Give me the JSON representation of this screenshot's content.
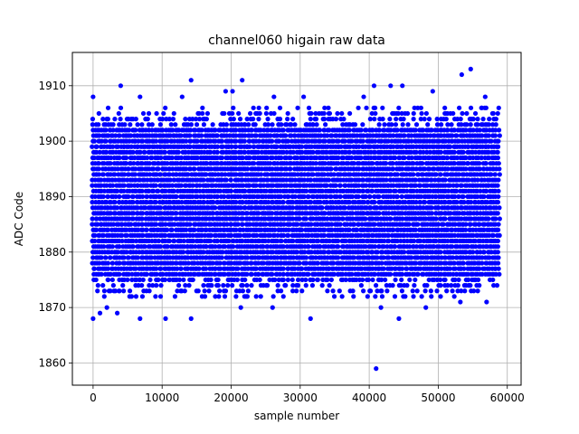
{
  "chart_data": {
    "type": "scatter",
    "title": "channel060 higain raw data",
    "xlabel": "sample number",
    "ylabel": "ADC Code",
    "xlim": [
      -3000,
      62000
    ],
    "ylim": [
      1856,
      1916
    ],
    "x_ticks": [
      0,
      10000,
      20000,
      30000,
      40000,
      50000,
      60000
    ],
    "x_tick_labels": [
      "0",
      "10000",
      "20000",
      "30000",
      "40000",
      "50000",
      "60000"
    ],
    "y_ticks": [
      1860,
      1870,
      1880,
      1890,
      1900,
      1910
    ],
    "y_tick_labels": [
      "1860",
      "1870",
      "1880",
      "1890",
      "1900",
      "1910"
    ],
    "grid": true,
    "series": [
      {
        "color": "#0000ff",
        "sample_range": [
          0,
          59000
        ],
        "dense_band": [
          1876,
          1902
        ],
        "outliers": [
          {
            "x": 41000,
            "y": 1859
          },
          {
            "x": 0,
            "y": 1868
          },
          {
            "x": 1000,
            "y": 1869
          },
          {
            "x": 2000,
            "y": 1870
          },
          {
            "x": 3500,
            "y": 1869
          },
          {
            "x": 6800,
            "y": 1868
          },
          {
            "x": 10500,
            "y": 1868
          },
          {
            "x": 14200,
            "y": 1868
          },
          {
            "x": 31500,
            "y": 1868
          },
          {
            "x": 44300,
            "y": 1868
          },
          {
            "x": 41700,
            "y": 1870
          },
          {
            "x": 21400,
            "y": 1870
          },
          {
            "x": 26000,
            "y": 1870
          },
          {
            "x": 48200,
            "y": 1870
          },
          {
            "x": 53200,
            "y": 1871
          },
          {
            "x": 57000,
            "y": 1871
          },
          {
            "x": 0,
            "y": 1908
          },
          {
            "x": 4000,
            "y": 1910
          },
          {
            "x": 6800,
            "y": 1908
          },
          {
            "x": 12900,
            "y": 1908
          },
          {
            "x": 14200,
            "y": 1911
          },
          {
            "x": 19200,
            "y": 1909
          },
          {
            "x": 20200,
            "y": 1909
          },
          {
            "x": 21600,
            "y": 1911
          },
          {
            "x": 26200,
            "y": 1908
          },
          {
            "x": 30500,
            "y": 1908
          },
          {
            "x": 39200,
            "y": 1908
          },
          {
            "x": 40700,
            "y": 1910
          },
          {
            "x": 43100,
            "y": 1910
          },
          {
            "x": 44800,
            "y": 1910
          },
          {
            "x": 49200,
            "y": 1909
          },
          {
            "x": 53400,
            "y": 1912
          },
          {
            "x": 54700,
            "y": 1913
          },
          {
            "x": 56800,
            "y": 1908
          }
        ]
      }
    ]
  }
}
